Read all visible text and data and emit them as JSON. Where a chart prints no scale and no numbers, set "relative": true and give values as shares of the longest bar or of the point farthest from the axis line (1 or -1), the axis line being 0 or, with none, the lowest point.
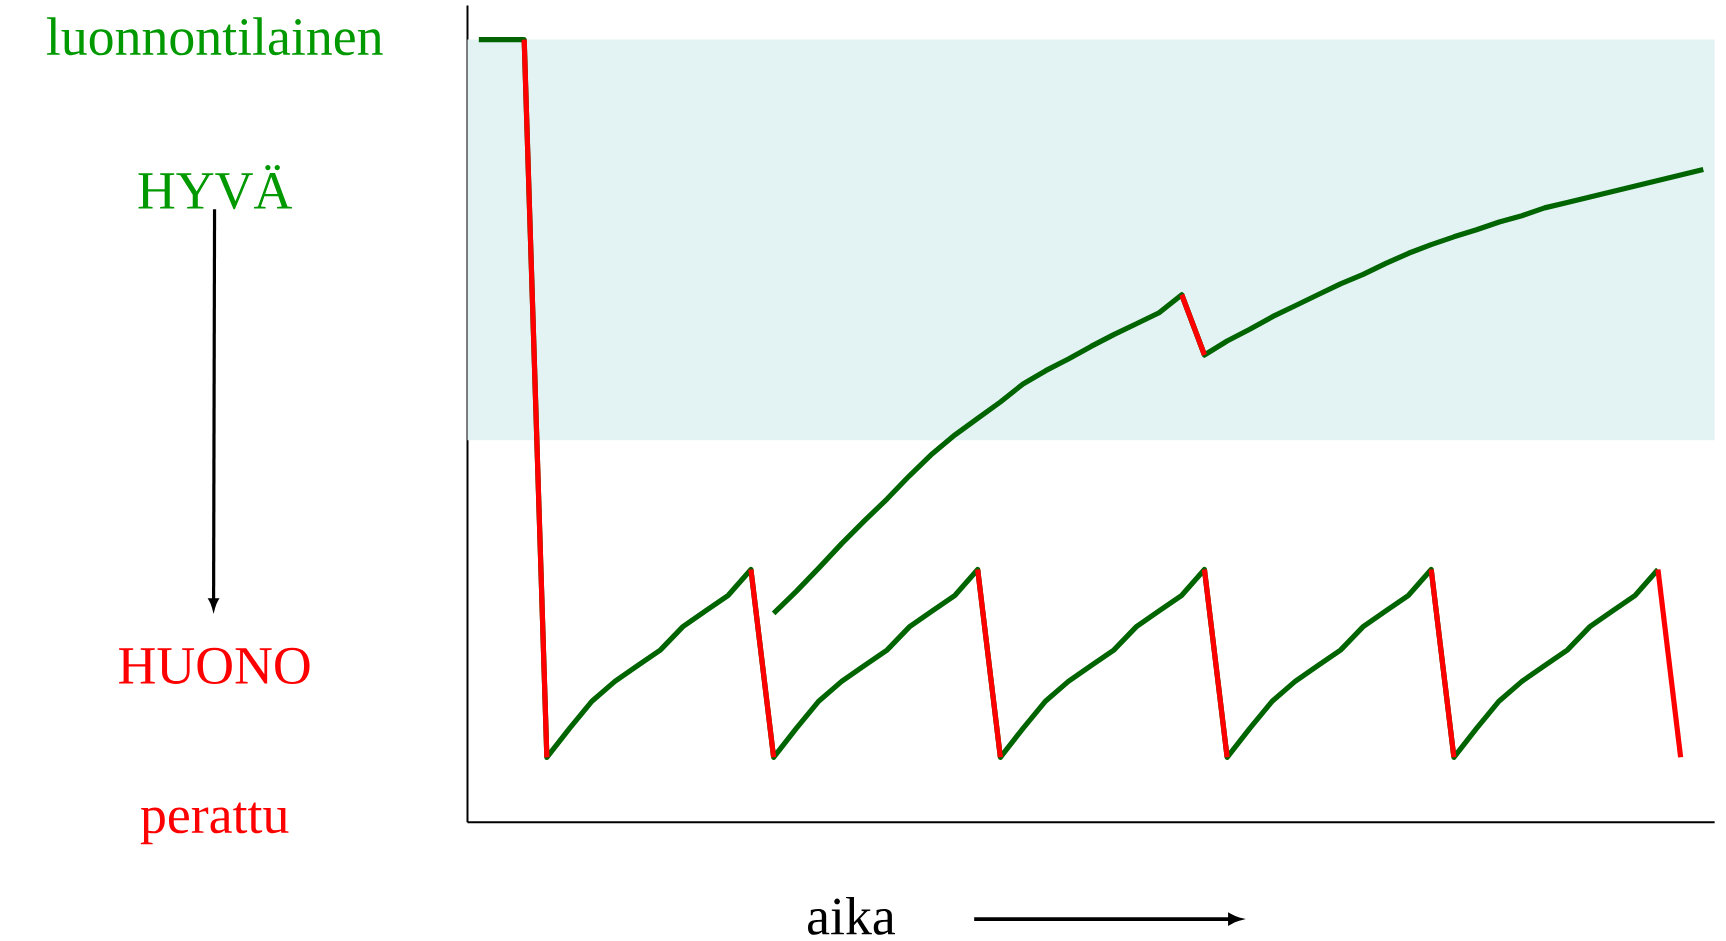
{
  "chart_data": {
    "type": "line",
    "relative": true,
    "xlabel": "aika",
    "annotations": [
      "luonnontilainen",
      "HYVÄ",
      "HUONO",
      "perattu"
    ],
    "line_style": "solid",
    "marker": "none",
    "categories": [
      null,
      null,
      null,
      null,
      null,
      null,
      null,
      null,
      null,
      null,
      null,
      null,
      null,
      null,
      null,
      null,
      null,
      null,
      null,
      null,
      null,
      null,
      null,
      null,
      null,
      null,
      null,
      null,
      null,
      null,
      null,
      null,
      null,
      null,
      null,
      null,
      null,
      null,
      null,
      null,
      null,
      null,
      null,
      null,
      null,
      null,
      null,
      null,
      null,
      null,
      null,
      null,
      null,
      null,
      null
    ],
    "bands": [
      {
        "axis": "y",
        "from": 0.488,
        "to": 1,
        "color": "#e3f3f3"
      }
    ],
    "series": [
      {
        "color": "#006400",
        "values": [
          1,
          1,
          1,
          0.083,
          0.12,
          0.155,
          0.18,
          0.2,
          0.22,
          0.25,
          0.27,
          0.29,
          0.323,
          0.083,
          0.12,
          0.155,
          0.18,
          0.2,
          0.22,
          0.25,
          0.27,
          0.29,
          0.323,
          0.083,
          0.12,
          0.155,
          0.18,
          0.2,
          0.22,
          0.25,
          0.27,
          0.29,
          0.323,
          0.083,
          0.12,
          0.155,
          0.18,
          0.2,
          0.22,
          0.25,
          0.27,
          0.29,
          0.323,
          0.083,
          0.12,
          0.155,
          0.18,
          0.2,
          0.22,
          0.25,
          0.27,
          0.29,
          0.323,
          null,
          null
        ]
      },
      {
        "color": "#006400",
        "values": [
          null,
          null,
          null,
          null,
          null,
          null,
          null,
          null,
          null,
          null,
          null,
          null,
          null,
          0.267,
          0.295,
          0.325,
          0.356,
          0.385,
          0.413,
          0.443,
          0.471,
          0.495,
          0.516,
          0.537,
          0.56,
          0.577,
          0.592,
          0.608,
          0.623,
          0.637,
          0.651,
          0.674,
          0.597,
          0.615,
          0.63,
          0.646,
          0.66,
          0.674,
          0.688,
          0.7,
          0.714,
          0.727,
          0.738,
          0.748,
          0.757,
          0.767,
          0.775,
          0.785,
          0.792,
          0.799,
          0.806,
          0.813,
          0.82,
          0.827,
          0.834
        ]
      },
      {
        "color": "#ff0000",
        "values": [
          null,
          null,
          1,
          0.083,
          null,
          null,
          null,
          null,
          null,
          null,
          null,
          null,
          null,
          null,
          null,
          null,
          null,
          null,
          null,
          null,
          null,
          null,
          null,
          null,
          null,
          null,
          null,
          null,
          null,
          null,
          null,
          null,
          null,
          null,
          null,
          null,
          null,
          null,
          null,
          null,
          null,
          null,
          null,
          null,
          null,
          null,
          null,
          null,
          null,
          null,
          null,
          null,
          null,
          null,
          null
        ]
      },
      {
        "color": "#ff0000",
        "values": [
          null,
          null,
          null,
          null,
          null,
          null,
          null,
          null,
          null,
          null,
          null,
          null,
          0.323,
          0.083,
          null,
          null,
          null,
          null,
          null,
          null,
          null,
          null,
          null,
          null,
          null,
          null,
          null,
          null,
          null,
          null,
          null,
          null,
          null,
          null,
          null,
          null,
          null,
          null,
          null,
          null,
          null,
          null,
          null,
          null,
          null,
          null,
          null,
          null,
          null,
          null,
          null,
          null,
          null,
          null,
          null
        ]
      },
      {
        "color": "#ff0000",
        "values": [
          null,
          null,
          null,
          null,
          null,
          null,
          null,
          null,
          null,
          null,
          null,
          null,
          null,
          null,
          null,
          null,
          null,
          null,
          null,
          null,
          null,
          null,
          0.323,
          0.083,
          null,
          null,
          null,
          null,
          null,
          null,
          null,
          null,
          null,
          null,
          null,
          null,
          null,
          null,
          null,
          null,
          null,
          null,
          null,
          null,
          null,
          null,
          null,
          null,
          null,
          null,
          null,
          null,
          null,
          null,
          null
        ]
      },
      {
        "color": "#ff0000",
        "values": [
          null,
          null,
          null,
          null,
          null,
          null,
          null,
          null,
          null,
          null,
          null,
          null,
          null,
          null,
          null,
          null,
          null,
          null,
          null,
          null,
          null,
          null,
          null,
          null,
          null,
          null,
          null,
          null,
          null,
          null,
          null,
          0.674,
          0.597,
          null,
          null,
          null,
          null,
          null,
          null,
          null,
          null,
          null,
          null,
          null,
          null,
          null,
          null,
          null,
          null,
          null,
          null,
          null,
          null,
          null,
          null
        ]
      },
      {
        "color": "#ff0000",
        "values": [
          null,
          null,
          null,
          null,
          null,
          null,
          null,
          null,
          null,
          null,
          null,
          null,
          null,
          null,
          null,
          null,
          null,
          null,
          null,
          null,
          null,
          null,
          null,
          null,
          null,
          null,
          null,
          null,
          null,
          null,
          null,
          null,
          0.323,
          0.083,
          null,
          null,
          null,
          null,
          null,
          null,
          null,
          null,
          null,
          null,
          null,
          null,
          null,
          null,
          null,
          null,
          null,
          null,
          null,
          null,
          null
        ]
      },
      {
        "color": "#ff0000",
        "values": [
          null,
          null,
          null,
          null,
          null,
          null,
          null,
          null,
          null,
          null,
          null,
          null,
          null,
          null,
          null,
          null,
          null,
          null,
          null,
          null,
          null,
          null,
          null,
          null,
          null,
          null,
          null,
          null,
          null,
          null,
          null,
          null,
          null,
          null,
          null,
          null,
          null,
          null,
          null,
          null,
          null,
          null,
          0.323,
          0.083,
          null,
          null,
          null,
          null,
          null,
          null,
          null,
          null,
          null,
          null,
          null
        ]
      },
      {
        "color": "#ff0000",
        "values": [
          null,
          null,
          null,
          null,
          null,
          null,
          null,
          null,
          null,
          null,
          null,
          null,
          null,
          null,
          null,
          null,
          null,
          null,
          null,
          null,
          null,
          null,
          null,
          null,
          null,
          null,
          null,
          null,
          null,
          null,
          null,
          null,
          null,
          null,
          null,
          null,
          null,
          null,
          null,
          null,
          null,
          null,
          null,
          null,
          null,
          null,
          null,
          null,
          null,
          null,
          null,
          null,
          0.323,
          0.083,
          null
        ]
      }
    ]
  }
}
